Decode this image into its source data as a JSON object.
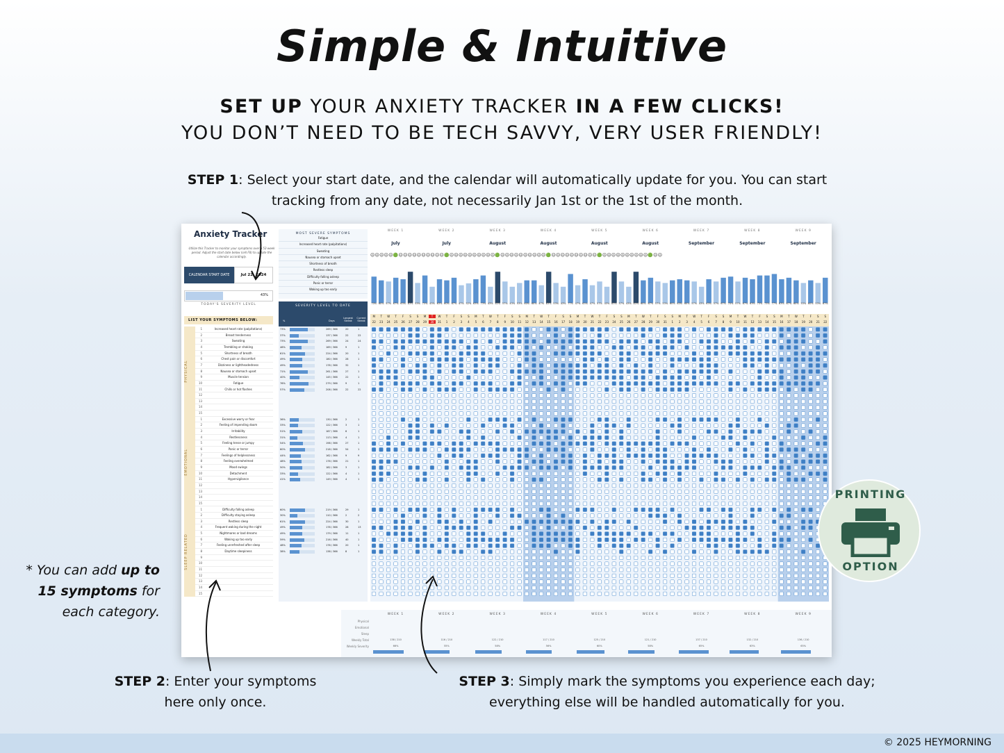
{
  "header": {
    "title": "Simple & Intuitive",
    "subtitle_line1_bold1": "SET UP",
    "subtitle_line1_mid": " YOUR ANXIETY TRACKER ",
    "subtitle_line1_bold2": "IN A FEW CLICKS!",
    "subtitle_line2": "YOU DON’T NEED TO BE TECH SAVVY, VERY USER FRIENDLY!"
  },
  "steps": {
    "step1_label": "STEP 1",
    "step1_text": ": Select your start date, and the calendar will automatically update for you. You can start tracking from any date, not necessarily Jan 1st or the 1st of the month.",
    "step2_label": "STEP 2",
    "step2_text": ": Enter your symptoms here only once.",
    "step3_label": "STEP 3",
    "step3_text": ": Simply mark the symptoms you experience each day; everything else will be handled automatically for you.",
    "note_prefix": "* You can add ",
    "note_bold": "up to 15 symptoms",
    "note_suffix": " for each category."
  },
  "badge": {
    "top": "PRINTING",
    "bottom": "OPTION",
    "icon": "printer-icon"
  },
  "footer": {
    "copyright": "© 2025 HEYMORNING"
  },
  "sheet": {
    "title": "Anxiety Tracker",
    "description": "Utilize this Tracker to monitor your symptoms over a 52-week period. Adjust the start date below (cell F8) to update the calendar accordingly.",
    "start_date_label": "CALENDAR START DATE",
    "start_date_value": "Jul 22, 2024",
    "todays_severity_value": "43%",
    "todays_severity_fraction": 0.43,
    "todays_severity_label": "TODAY'S SEVERITY LEVEL",
    "list_header": "LIST YOUR SYMPTOMS BELOW:",
    "most_severe_header": "MOST SEVERE SYMPTOMS",
    "most_severe": [
      "Fatigue",
      "Increased heart rate (palpitations)",
      "Sweating",
      "Nausea or stomach upset",
      "Shortness of breath",
      "Restless sleep",
      "Difficulty falling asleep",
      "Panic or terror",
      "Waking up too early"
    ],
    "severity_header": "SEVERITY LEVEL TO DATE",
    "severity_cols": {
      "pct": "%",
      "days": "Days",
      "longest": "Longest Streak",
      "current": "Current Streak"
    },
    "categories": [
      {
        "name": "PHYSICAL",
        "symptoms": [
          {
            "n": "1",
            "name": "Increased heart rate (palpitations)",
            "pct": "73%",
            "f": 0.73,
            "days": "269 / 366",
            "longest": "20",
            "current": "1"
          },
          {
            "n": "2",
            "name": "Breast tenderness",
            "pct": "37%",
            "f": 0.37,
            "days": "137 / 366",
            "longest": "22",
            "current": "22"
          },
          {
            "n": "3",
            "name": "Sweating",
            "pct": "73%",
            "f": 0.73,
            "days": "269 / 366",
            "longest": "24",
            "current": "24"
          },
          {
            "n": "4",
            "name": "Trembling or shaking",
            "pct": "46%",
            "f": 0.46,
            "days": "169 / 366",
            "longest": "9",
            "current": "1"
          },
          {
            "n": "5",
            "name": "Shortness of breath",
            "pct": "61%",
            "f": 0.61,
            "days": "224 / 366",
            "longest": "20",
            "current": "1"
          },
          {
            "n": "6",
            "name": "Chest pain or discomfort",
            "pct": "49%",
            "f": 0.49,
            "days": "180 / 366",
            "longest": "28",
            "current": "1"
          },
          {
            "n": "7",
            "name": "Dizziness or lightheadedness",
            "pct": "49%",
            "f": 0.49,
            "days": "178 / 366",
            "longest": "32",
            "current": "1"
          },
          {
            "n": "8",
            "name": "Nausea or stomach upset",
            "pct": "71%",
            "f": 0.71,
            "days": "261 / 366",
            "longest": "27",
            "current": "1"
          },
          {
            "n": "9",
            "name": "Muscle tension",
            "pct": "40%",
            "f": 0.4,
            "days": "145 / 366",
            "longest": "22",
            "current": "1"
          },
          {
            "n": "10",
            "name": "Fatigue",
            "pct": "76%",
            "f": 0.76,
            "days": "279 / 366",
            "longest": "9",
            "current": "1"
          },
          {
            "n": "11",
            "name": "Chills or hot flashes",
            "pct": "57%",
            "f": 0.57,
            "days": "208 / 366",
            "longest": "22",
            "current": "22"
          },
          {
            "n": "12",
            "name": ""
          },
          {
            "n": "13",
            "name": ""
          },
          {
            "n": "14",
            "name": ""
          },
          {
            "n": "15",
            "name": ""
          }
        ]
      },
      {
        "name": "EMOTIONAL",
        "symptoms": [
          {
            "n": "1",
            "name": "Excessive worry or fear",
            "pct": "36%",
            "f": 0.36,
            "days": "130 / 366",
            "longest": "2",
            "current": "1"
          },
          {
            "n": "2",
            "name": "Feeling of impending doom",
            "pct": "33%",
            "f": 0.33,
            "days": "122 / 366",
            "longest": "3",
            "current": "1"
          },
          {
            "n": "3",
            "name": "Irritability",
            "pct": "51%",
            "f": 0.51,
            "days": "187 / 366",
            "longest": "6",
            "current": "1"
          },
          {
            "n": "4",
            "name": "Restlessness",
            "pct": "31%",
            "f": 0.31,
            "days": "113 / 366",
            "longest": "4",
            "current": "1"
          },
          {
            "n": "5",
            "name": "Feeling tense or jumpy",
            "pct": "54%",
            "f": 0.54,
            "days": "198 / 366",
            "longest": "27",
            "current": "1"
          },
          {
            "n": "6",
            "name": "Panic or terror",
            "pct": "60%",
            "f": 0.6,
            "days": "218 / 366",
            "longest": "54",
            "current": "1"
          },
          {
            "n": "7",
            "name": "Feelings of helplessness",
            "pct": "44%",
            "f": 0.44,
            "days": "162 / 366",
            "longest": "9",
            "current": "9"
          },
          {
            "n": "8",
            "name": "Feeling overwhelmed",
            "pct": "48%",
            "f": 0.48,
            "days": "176 / 366",
            "longest": "21",
            "current": "1"
          },
          {
            "n": "9",
            "name": "Mood swings",
            "pct": "50%",
            "f": 0.5,
            "days": "182 / 366",
            "longest": "3",
            "current": "1"
          },
          {
            "n": "10",
            "name": "Detachment",
            "pct": "33%",
            "f": 0.33,
            "days": "122 / 366",
            "longest": "4",
            "current": "1"
          },
          {
            "n": "11",
            "name": "Hypervigilance",
            "pct": "41%",
            "f": 0.41,
            "days": "149 / 366",
            "longest": "4",
            "current": "1"
          },
          {
            "n": "12",
            "name": ""
          },
          {
            "n": "13",
            "name": ""
          },
          {
            "n": "14",
            "name": ""
          },
          {
            "n": "15",
            "name": ""
          }
        ]
      },
      {
        "name": "SLEEP RELATED",
        "symptoms": [
          {
            "n": "1",
            "name": "Difficulty falling asleep",
            "pct": "60%",
            "f": 0.6,
            "days": "219 / 366",
            "longest": "29",
            "current": "1"
          },
          {
            "n": "2",
            "name": "Difficulty staying asleep",
            "pct": "30%",
            "f": 0.3,
            "days": "110 / 366",
            "longest": "2",
            "current": "2"
          },
          {
            "n": "3",
            "name": "Restless sleep",
            "pct": "61%",
            "f": 0.61,
            "days": "224 / 366",
            "longest": "30",
            "current": "1"
          },
          {
            "n": "4",
            "name": "Frequent waking during the night",
            "pct": "49%",
            "f": 0.49,
            "days": "178 / 366",
            "longest": "28",
            "current": "13"
          },
          {
            "n": "5",
            "name": "Nightmares or bad dreams",
            "pct": "49%",
            "f": 0.49,
            "days": "179 / 366",
            "longest": "11",
            "current": "1"
          },
          {
            "n": "6",
            "name": "Waking up too early",
            "pct": "59%",
            "f": 0.59,
            "days": "216 / 366",
            "longest": "40",
            "current": "1"
          },
          {
            "n": "7",
            "name": "Feeling unrefreshed after sleep",
            "pct": "48%",
            "f": 0.48,
            "days": "176 / 366",
            "longest": "20",
            "current": "1"
          },
          {
            "n": "8",
            "name": "Daytime sleepiness",
            "pct": "38%",
            "f": 0.38,
            "days": "138 / 366",
            "longest": "8",
            "current": "1"
          },
          {
            "n": "9",
            "name": ""
          },
          {
            "n": "10",
            "name": ""
          },
          {
            "n": "11",
            "name": ""
          },
          {
            "n": "12",
            "name": ""
          },
          {
            "n": "13",
            "name": ""
          },
          {
            "n": "14",
            "name": ""
          },
          {
            "n": "15",
            "name": ""
          }
        ]
      }
    ],
    "weeks": [
      {
        "label": "WEEK 1",
        "month": "July",
        "total": "138 / 210",
        "severity": "66%",
        "f": 0.66
      },
      {
        "label": "WEEK 2",
        "month": "July",
        "total": "116 / 210",
        "severity": "55%",
        "f": 0.55
      },
      {
        "label": "WEEK 3",
        "month": "August",
        "total": "122 / 210",
        "severity": "58%",
        "f": 0.58
      },
      {
        "label": "WEEK 4",
        "month": "August",
        "total": "117 / 210",
        "severity": "56%",
        "f": 0.56
      },
      {
        "label": "WEEK 5",
        "month": "August",
        "total": "125 / 210",
        "severity": "60%",
        "f": 0.6
      },
      {
        "label": "WEEK 6",
        "month": "August",
        "total": "121 / 210",
        "severity": "58%",
        "f": 0.58
      },
      {
        "label": "WEEK 7",
        "month": "September",
        "total": "137 / 210",
        "severity": "65%",
        "f": 0.65
      },
      {
        "label": "WEEK 8",
        "month": "September",
        "total": "132 / 210",
        "severity": "63%",
        "f": 0.63
      },
      {
        "label": "WEEK 9",
        "month": "September",
        "total": "136 / 210",
        "severity": "65%",
        "f": 0.65
      }
    ],
    "day_letters": [
      "M",
      "T",
      "W",
      "T",
      "F",
      "S",
      "S"
    ],
    "day_numbers": [
      "22",
      "23",
      "24",
      "25",
      "26",
      "27",
      "28",
      "29",
      "30",
      "31",
      "1",
      "2",
      "3",
      "4",
      "5",
      "6",
      "7",
      "8",
      "9",
      "10",
      "11",
      "12",
      "13",
      "14",
      "15",
      "16",
      "17",
      "18",
      "19",
      "20",
      "21",
      "22",
      "23",
      "24",
      "25",
      "26",
      "27",
      "28",
      "29",
      "30",
      "31",
      "1",
      "2",
      "3",
      "4",
      "5",
      "6",
      "7",
      "8",
      "9",
      "10",
      "11",
      "12",
      "13",
      "14",
      "15",
      "16",
      "17",
      "18",
      "19",
      "20",
      "21",
      "22"
    ],
    "today_index": 8,
    "daily_severity": [
      70,
      60,
      57,
      67,
      63,
      83,
      53,
      73,
      43,
      63,
      60,
      67,
      47,
      52,
      63,
      73,
      43,
      83,
      57,
      43,
      53,
      60,
      60,
      47,
      83,
      53,
      43,
      77,
      47,
      63,
      47,
      57,
      43,
      83,
      57,
      43,
      83,
      60,
      67,
      57,
      53,
      60,
      63,
      60,
      57,
      43,
      63,
      57,
      67,
      70,
      57,
      67,
      63,
      73,
      73,
      77,
      63,
      67,
      60,
      53,
      60,
      53,
      67
    ],
    "summary_labels": [
      "Physical",
      "Emotional",
      "Sleep",
      "Weekly Total",
      "Weekly Severity"
    ],
    "colors": {
      "accent": "#2c4a6b",
      "checked": "#3f7fc4",
      "bar": "#5a92d0",
      "highlight": "#f5e8c8",
      "today": "#e02020",
      "badge": "#2f5d4a"
    }
  }
}
